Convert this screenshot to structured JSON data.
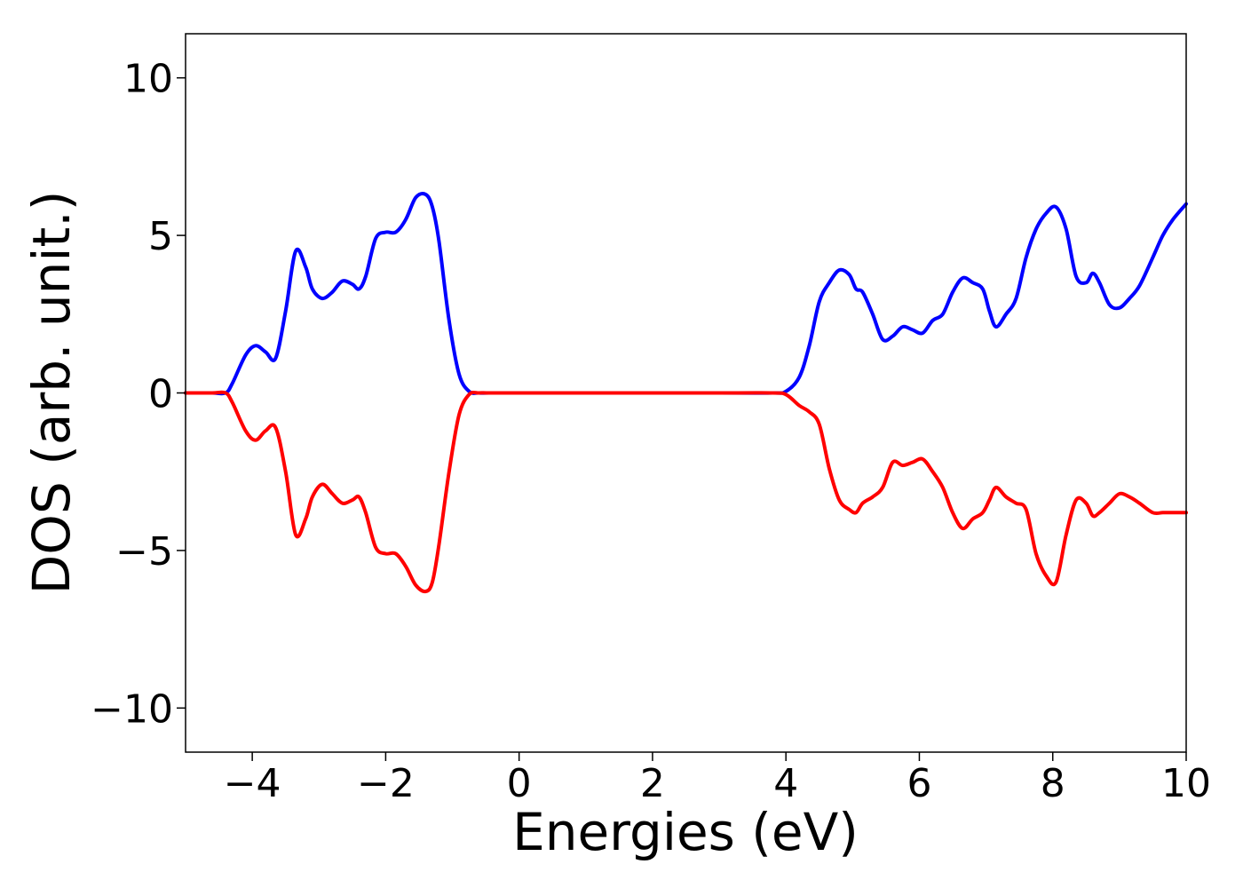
{
  "chart_data": {
    "type": "line",
    "title": "",
    "xlabel": "Energies (eV)",
    "ylabel": "DOS (arb. unit.)",
    "xlim": [
      -5,
      10
    ],
    "ylim": [
      -11.4,
      11.4
    ],
    "x_ticks": [
      -4,
      -2,
      0,
      2,
      4,
      6,
      8,
      10
    ],
    "x_tick_labels": [
      "−4",
      "−2",
      "0",
      "2",
      "4",
      "6",
      "8",
      "10"
    ],
    "y_ticks": [
      10,
      5,
      0,
      -5,
      -10
    ],
    "y_tick_labels": [
      "10",
      "5",
      "0",
      "−5",
      "−10"
    ],
    "grid": false,
    "legend": "none",
    "series": [
      {
        "color": "#0000ff",
        "x": [
          -5.0,
          -4.6,
          -4.4,
          -4.3,
          -4.1,
          -3.95,
          -3.8,
          -3.65,
          -3.5,
          -3.35,
          -3.2,
          -3.1,
          -2.95,
          -2.8,
          -2.65,
          -2.5,
          -2.4,
          -2.3,
          -2.15,
          -2.0,
          -1.85,
          -1.7,
          -1.55,
          -1.4,
          -1.3,
          -1.2,
          -1.05,
          -0.9,
          -0.75,
          -0.6,
          -0.45,
          0.0,
          3.0,
          3.8,
          4.0,
          4.2,
          4.35,
          4.5,
          4.65,
          4.8,
          4.95,
          5.05,
          5.15,
          5.3,
          5.45,
          5.6,
          5.75,
          5.9,
          6.05,
          6.2,
          6.35,
          6.5,
          6.65,
          6.8,
          6.95,
          7.05,
          7.15,
          7.3,
          7.45,
          7.6,
          7.75,
          7.9,
          8.05,
          8.2,
          8.35,
          8.5,
          8.6,
          8.7,
          8.85,
          9.0,
          9.15,
          9.3,
          9.5,
          9.65,
          9.8,
          10.0
        ],
        "y": [
          0.0,
          0.0,
          0.0,
          0.3,
          1.2,
          1.5,
          1.3,
          1.1,
          2.6,
          4.5,
          4.0,
          3.3,
          3.0,
          3.2,
          3.55,
          3.45,
          3.3,
          3.7,
          4.9,
          5.1,
          5.1,
          5.5,
          6.2,
          6.3,
          5.9,
          4.8,
          2.3,
          0.6,
          0.05,
          0.0,
          0.0,
          0.0,
          0.0,
          0.0,
          0.05,
          0.5,
          1.5,
          2.9,
          3.5,
          3.9,
          3.75,
          3.3,
          3.2,
          2.5,
          1.7,
          1.8,
          2.1,
          2.0,
          1.9,
          2.3,
          2.5,
          3.2,
          3.65,
          3.5,
          3.3,
          2.6,
          2.1,
          2.5,
          3.0,
          4.3,
          5.2,
          5.7,
          5.9,
          5.2,
          3.7,
          3.5,
          3.8,
          3.5,
          2.8,
          2.7,
          3.0,
          3.4,
          4.3,
          5.0,
          5.5,
          6.0
        ]
      },
      {
        "color": "#ff0000",
        "x": [
          -5.0,
          -4.6,
          -4.4,
          -4.3,
          -4.1,
          -3.95,
          -3.8,
          -3.65,
          -3.5,
          -3.35,
          -3.2,
          -3.1,
          -2.95,
          -2.8,
          -2.65,
          -2.5,
          -2.4,
          -2.3,
          -2.15,
          -2.0,
          -1.85,
          -1.7,
          -1.55,
          -1.4,
          -1.3,
          -1.2,
          -1.05,
          -0.9,
          -0.75,
          -0.6,
          -0.45,
          0.0,
          3.0,
          3.8,
          4.0,
          4.2,
          4.35,
          4.5,
          4.65,
          4.8,
          4.95,
          5.05,
          5.15,
          5.3,
          5.45,
          5.6,
          5.75,
          5.9,
          6.05,
          6.2,
          6.35,
          6.5,
          6.65,
          6.8,
          6.95,
          7.05,
          7.15,
          7.3,
          7.45,
          7.6,
          7.75,
          7.9,
          8.05,
          8.2,
          8.35,
          8.5,
          8.6,
          8.7,
          8.85,
          9.0,
          9.15,
          9.3,
          9.5,
          9.65,
          9.8,
          10.0
        ],
        "y": [
          0.0,
          0.0,
          0.0,
          -0.3,
          -1.2,
          -1.5,
          -1.2,
          -1.1,
          -2.5,
          -4.5,
          -4.0,
          -3.3,
          -2.9,
          -3.2,
          -3.5,
          -3.4,
          -3.3,
          -3.8,
          -4.9,
          -5.1,
          -5.1,
          -5.5,
          -6.1,
          -6.3,
          -6.0,
          -4.8,
          -2.5,
          -0.7,
          -0.05,
          0.0,
          0.0,
          0.0,
          0.0,
          0.0,
          -0.05,
          -0.4,
          -0.6,
          -1.0,
          -2.4,
          -3.4,
          -3.7,
          -3.8,
          -3.5,
          -3.3,
          -3.0,
          -2.2,
          -2.3,
          -2.2,
          -2.1,
          -2.5,
          -3.0,
          -3.8,
          -4.3,
          -4.0,
          -3.8,
          -3.4,
          -3.0,
          -3.3,
          -3.5,
          -3.7,
          -5.1,
          -5.8,
          -6.0,
          -4.5,
          -3.4,
          -3.5,
          -3.9,
          -3.8,
          -3.5,
          -3.2,
          -3.3,
          -3.5,
          -3.8,
          -3.8,
          -3.8,
          -3.8
        ]
      }
    ]
  }
}
